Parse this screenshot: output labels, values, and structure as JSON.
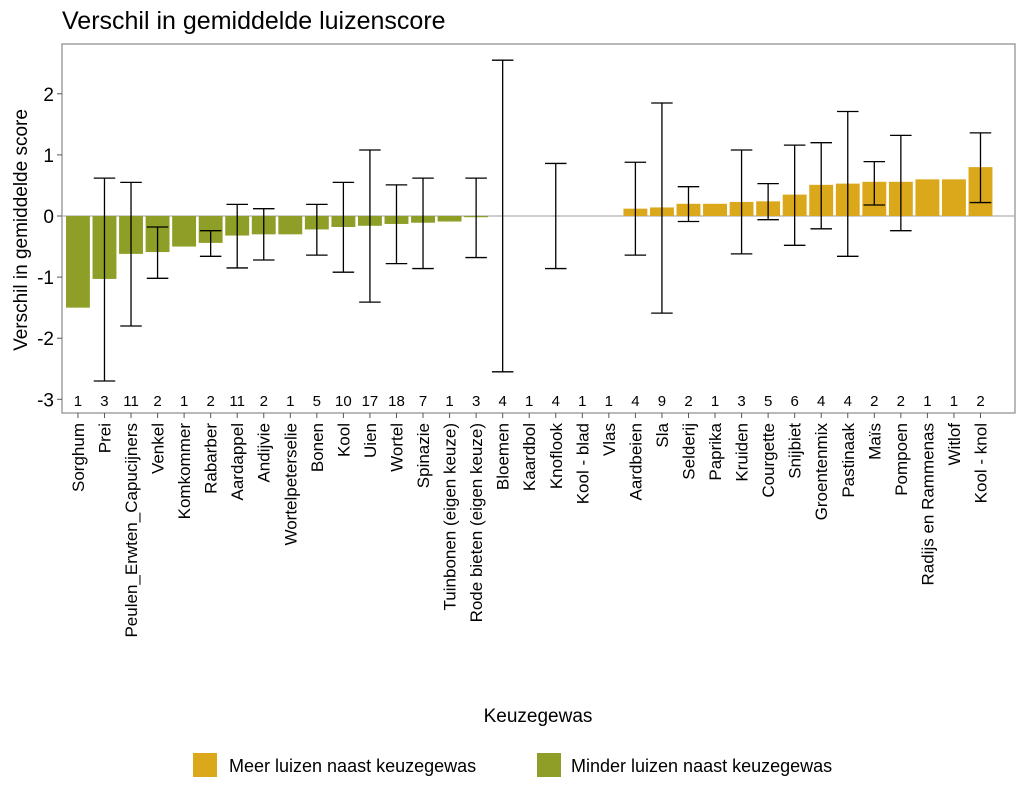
{
  "chart_data": {
    "type": "bar",
    "title": "Verschil in gemiddelde luizenscore",
    "xlabel": "Keuzegewas",
    "ylabel": "Verschil in gemiddelde score",
    "ylim": [
      -3.2,
      2.8
    ],
    "yticks": [
      -3,
      -2,
      -1,
      0,
      1,
      2
    ],
    "grid": false,
    "legend_position": "bottom",
    "legend": [
      {
        "key": "meer",
        "label": "Meer luizen naast keuzegewas",
        "color": "#DAA81A"
      },
      {
        "key": "minder",
        "label": "Minder luizen naast keuzegewas",
        "color": "#8E9E26"
      }
    ],
    "categories": [
      "Sorghum",
      "Prei",
      "Peulen_Erwten_Capucijners",
      "Venkel",
      "Komkommer",
      "Rabarber",
      "Aardappel",
      "Andijvie",
      "Wortelpeterselie",
      "Bonen",
      "Kool",
      "Uien",
      "Wortel",
      "Spinazie",
      "Tuinbonen (eigen keuze)",
      "Rode bieten (eigen keuze)",
      "Bloemen",
      "Kaardbol",
      "Knoflook",
      "Kool - blad",
      "Vlas",
      "Aardbeien",
      "Sla",
      "Selderij",
      "Paprika",
      "Kruiden",
      "Courgette",
      "Snijbiet",
      "Groentenmix",
      "Pastinaak",
      "Maïs",
      "Pompoen",
      "Radijs en Rammenas",
      "Witlof",
      "Kool - knol"
    ],
    "values": [
      -1.5,
      -1.03,
      -0.62,
      -0.59,
      -0.5,
      -0.44,
      -0.32,
      -0.3,
      -0.3,
      -0.22,
      -0.18,
      -0.16,
      -0.13,
      -0.11,
      -0.09,
      -0.02,
      0,
      0,
      0,
      0,
      0,
      0.12,
      0.14,
      0.2,
      0.2,
      0.23,
      0.24,
      0.35,
      0.51,
      0.53,
      0.56,
      0.56,
      0.6,
      0.6,
      0.8
    ],
    "error_low": [
      null,
      -2.7,
      -1.8,
      -1.02,
      null,
      -0.66,
      -0.85,
      -0.72,
      null,
      -0.64,
      -0.92,
      -1.41,
      -0.78,
      -0.86,
      null,
      -0.68,
      -2.55,
      null,
      -0.86,
      null,
      null,
      -0.64,
      -1.59,
      -0.09,
      null,
      -0.62,
      -0.06,
      -0.48,
      -0.21,
      -0.66,
      0.18,
      -0.24,
      null,
      null,
      0.22
    ],
    "error_high": [
      null,
      0.62,
      0.55,
      -0.18,
      null,
      -0.24,
      0.19,
      0.12,
      null,
      0.19,
      0.55,
      1.08,
      0.51,
      0.62,
      null,
      0.62,
      2.55,
      null,
      0.86,
      null,
      null,
      0.88,
      1.85,
      0.48,
      null,
      1.08,
      0.53,
      1.16,
      1.2,
      1.71,
      0.89,
      1.32,
      null,
      null,
      1.36
    ],
    "n": [
      1,
      3,
      11,
      2,
      1,
      2,
      11,
      2,
      1,
      5,
      10,
      17,
      18,
      7,
      1,
      3,
      4,
      1,
      4,
      1,
      1,
      4,
      9,
      2,
      1,
      3,
      5,
      6,
      4,
      4,
      2,
      2,
      1,
      1,
      2
    ]
  }
}
